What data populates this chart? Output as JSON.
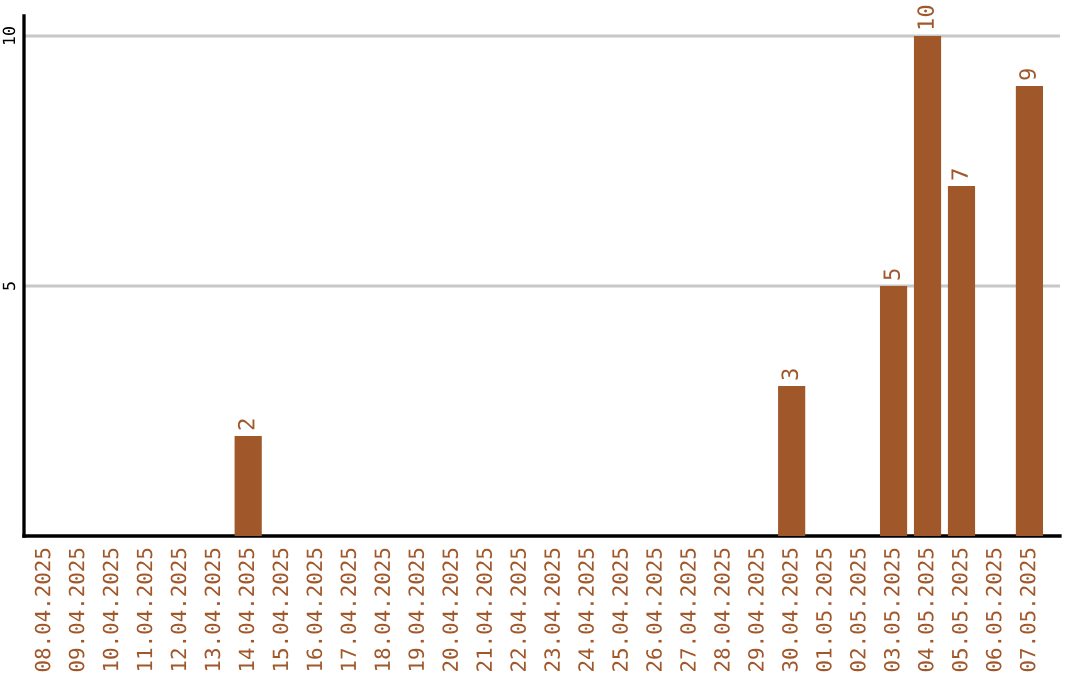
{
  "chart_data": {
    "type": "bar",
    "categories": [
      "08.04.2025",
      "09.04.2025",
      "10.04.2025",
      "11.04.2025",
      "12.04.2025",
      "13.04.2025",
      "14.04.2025",
      "15.04.2025",
      "16.04.2025",
      "17.04.2025",
      "18.04.2025",
      "19.04.2025",
      "20.04.2025",
      "21.04.2025",
      "22.04.2025",
      "23.04.2025",
      "24.04.2025",
      "25.04.2025",
      "26.04.2025",
      "27.04.2025",
      "28.04.2025",
      "29.04.2025",
      "30.04.2025",
      "01.05.2025",
      "02.05.2025",
      "03.05.2025",
      "04.05.2025",
      "05.05.2025",
      "06.05.2025",
      "07.05.2025"
    ],
    "values": [
      0,
      0,
      0,
      0,
      0,
      0,
      2,
      0,
      0,
      0,
      0,
      0,
      0,
      0,
      0,
      0,
      0,
      0,
      0,
      0,
      0,
      0,
      3,
      0,
      0,
      5,
      10,
      7,
      0,
      9
    ],
    "value_labels": [
      null,
      null,
      null,
      null,
      null,
      null,
      "2",
      null,
      null,
      null,
      null,
      null,
      null,
      null,
      null,
      null,
      null,
      null,
      null,
      null,
      null,
      null,
      "3",
      null,
      null,
      "5",
      "10",
      "7",
      null,
      "9"
    ],
    "color": "#a0572a",
    "ylim": [
      0,
      10.4
    ],
    "yticks": [
      5,
      10
    ],
    "grid": "y",
    "legend": false
  }
}
